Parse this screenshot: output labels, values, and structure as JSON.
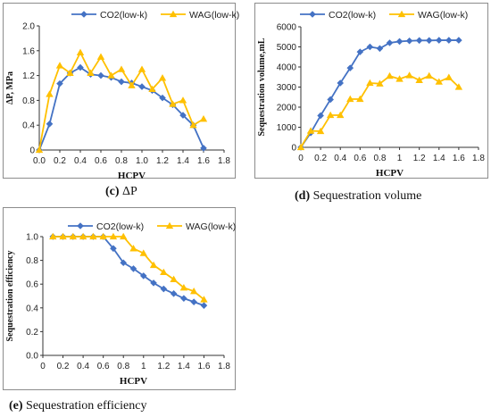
{
  "chart_data": [
    {
      "id": "c",
      "type": "line",
      "caption_tag": "(c)",
      "caption_text": "ΔP",
      "xlabel": "HCPV",
      "ylabel": "ΔP, MPa",
      "xlim": [
        0,
        1.8
      ],
      "ylim": [
        0,
        2.0
      ],
      "xticks": [
        "0.0",
        "0.2",
        "0.4",
        "0.6",
        "0.8",
        "1.0",
        "1.2",
        "1.4",
        "1.6",
        "1.8"
      ],
      "yticks": [
        "0",
        "0.4",
        "0.8",
        "1.2",
        "1.6",
        "2.0"
      ],
      "grid": false,
      "legend": "top",
      "series": [
        {
          "name": "CO2(low-k)",
          "color": "#4472C4",
          "marker": "diamond",
          "x": [
            0,
            0.1,
            0.2,
            0.3,
            0.4,
            0.5,
            0.6,
            0.7,
            0.8,
            0.9,
            1.0,
            1.1,
            1.2,
            1.3,
            1.4,
            1.5,
            1.6
          ],
          "y": [
            0,
            0.42,
            1.07,
            1.24,
            1.33,
            1.22,
            1.2,
            1.17,
            1.1,
            1.08,
            1.02,
            0.96,
            0.84,
            0.73,
            0.56,
            0.4,
            0.03
          ]
        },
        {
          "name": "WAG(low-k)",
          "color": "#FFC000",
          "marker": "triangle",
          "x": [
            0,
            0.1,
            0.2,
            0.3,
            0.4,
            0.5,
            0.6,
            0.7,
            0.8,
            0.9,
            1.0,
            1.1,
            1.2,
            1.3,
            1.4,
            1.5,
            1.6
          ],
          "y": [
            0,
            0.9,
            1.36,
            1.24,
            1.57,
            1.24,
            1.5,
            1.2,
            1.3,
            1.04,
            1.3,
            0.98,
            1.16,
            0.74,
            0.8,
            0.4,
            0.5
          ]
        }
      ]
    },
    {
      "id": "d",
      "type": "line",
      "caption_tag": "(d)",
      "caption_text": "Sequestration volume",
      "xlabel": "HCPV",
      "ylabel": "Sequestration volume,mL",
      "xlim": [
        0,
        1.8
      ],
      "ylim": [
        0,
        6000
      ],
      "xticks": [
        "0",
        "0.2",
        "0.4",
        "0.6",
        "0.8",
        "1",
        "1.2",
        "1.4",
        "1.6",
        "1.8"
      ],
      "yticks": [
        "0",
        "1000",
        "2000",
        "3000",
        "4000",
        "5000",
        "6000"
      ],
      "grid": false,
      "legend": "top",
      "series": [
        {
          "name": "CO2(low-k)",
          "color": "#4472C4",
          "marker": "diamond",
          "x": [
            0,
            0.1,
            0.2,
            0.3,
            0.4,
            0.5,
            0.6,
            0.7,
            0.8,
            0.9,
            1.0,
            1.1,
            1.2,
            1.3,
            1.4,
            1.5,
            1.6
          ],
          "y": [
            0,
            720,
            1580,
            2380,
            3200,
            3950,
            4750,
            5000,
            4920,
            5200,
            5270,
            5300,
            5320,
            5320,
            5330,
            5330,
            5330
          ]
        },
        {
          "name": "WAG(low-k)",
          "color": "#FFC000",
          "marker": "triangle",
          "x": [
            0,
            0.1,
            0.2,
            0.3,
            0.4,
            0.5,
            0.6,
            0.7,
            0.8,
            0.9,
            1.0,
            1.1,
            1.2,
            1.3,
            1.4,
            1.5,
            1.6
          ],
          "y": [
            0,
            820,
            800,
            1600,
            1600,
            2400,
            2400,
            3200,
            3170,
            3550,
            3400,
            3580,
            3340,
            3560,
            3260,
            3480,
            3000
          ]
        }
      ]
    },
    {
      "id": "e",
      "type": "line",
      "caption_tag": "(e)",
      "caption_text": "Sequestration efficiency",
      "xlabel": "HCPV",
      "ylabel": "Sequestration efficiency",
      "xlim": [
        0,
        1.8
      ],
      "ylim": [
        0,
        1.0
      ],
      "xticks": [
        "0",
        "0.2",
        "0.4",
        "0.6",
        "0.8",
        "1",
        "1.2",
        "1.4",
        "1.6",
        "1.8"
      ],
      "yticks": [
        "0.0",
        "0.2",
        "0.4",
        "0.6",
        "0.8",
        "1.0"
      ],
      "grid": false,
      "legend": "top",
      "series": [
        {
          "name": "CO2(low-k)",
          "color": "#4472C4",
          "marker": "diamond",
          "x": [
            0.1,
            0.2,
            0.3,
            0.4,
            0.5,
            0.6,
            0.7,
            0.8,
            0.9,
            1.0,
            1.1,
            1.2,
            1.3,
            1.4,
            1.5,
            1.6
          ],
          "y": [
            1.0,
            1.0,
            1.0,
            1.0,
            1.0,
            1.0,
            0.9,
            0.78,
            0.73,
            0.67,
            0.61,
            0.56,
            0.52,
            0.48,
            0.45,
            0.42
          ]
        },
        {
          "name": "WAG(low-k)",
          "color": "#FFC000",
          "marker": "triangle",
          "x": [
            0.1,
            0.2,
            0.3,
            0.4,
            0.5,
            0.6,
            0.7,
            0.8,
            0.9,
            1.0,
            1.1,
            1.2,
            1.3,
            1.4,
            1.5,
            1.6
          ],
          "y": [
            1.0,
            1.0,
            1.0,
            1.0,
            1.0,
            1.0,
            1.0,
            1.0,
            0.9,
            0.86,
            0.76,
            0.7,
            0.64,
            0.57,
            0.54,
            0.47
          ]
        }
      ]
    }
  ]
}
